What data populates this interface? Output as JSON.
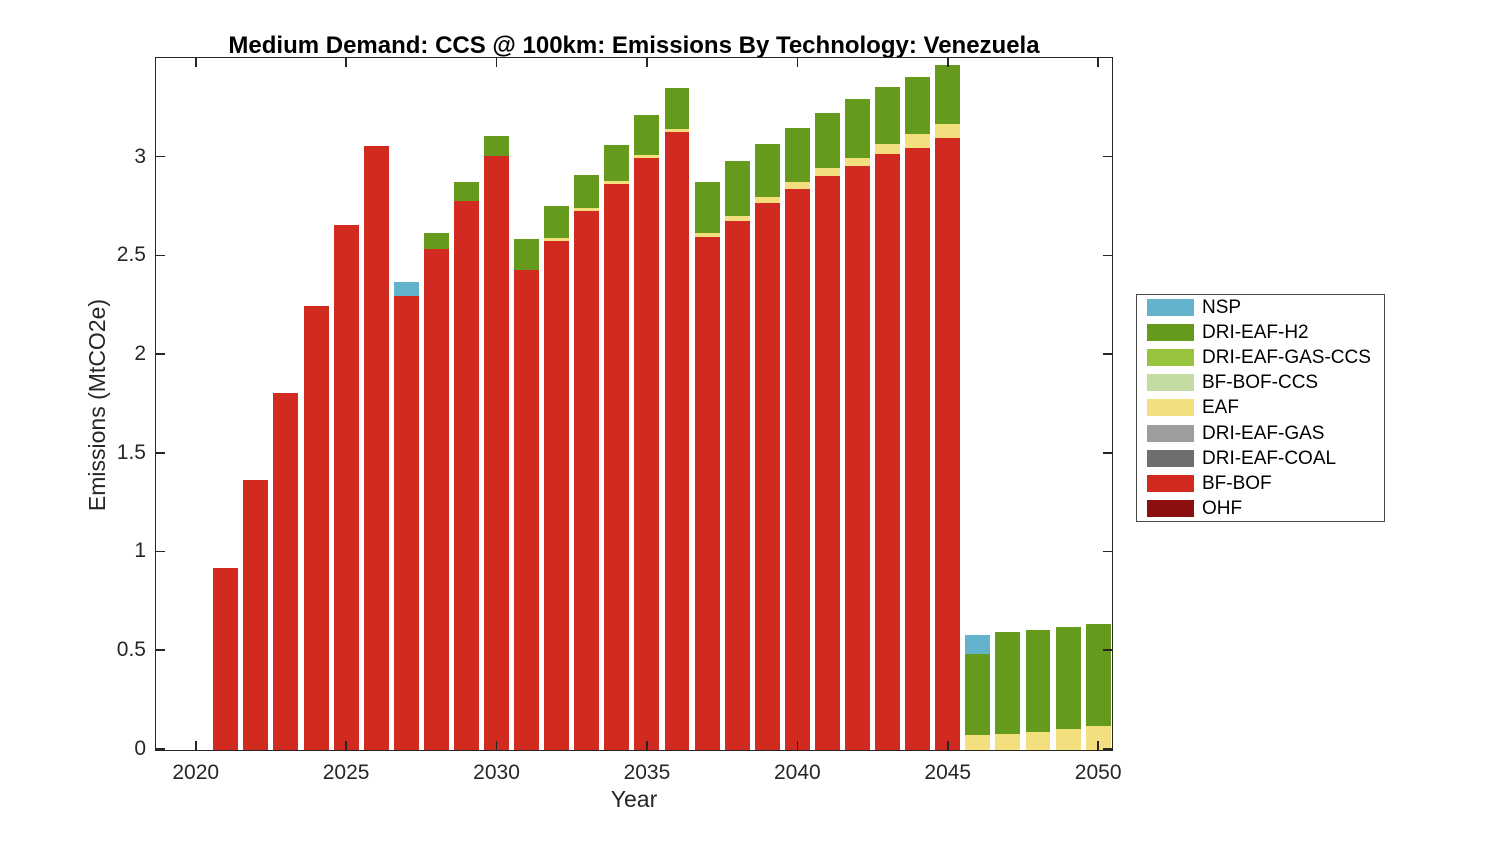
{
  "chart_data": {
    "type": "bar",
    "stacked": true,
    "title": "Medium Demand: CCS @ 100km: Emissions By Technology: Venezuela",
    "xlabel": "Year",
    "ylabel": "Emissions (MtCO2e)",
    "xlim": [
      2018.68,
      2050.42
    ],
    "ylim": [
      0,
      3.5
    ],
    "x_ticks": [
      2020,
      2025,
      2030,
      2035,
      2040,
      2045,
      2050
    ],
    "y_ticks": [
      0,
      0.5,
      1,
      1.5,
      2,
      2.5,
      3
    ],
    "y_tick_labels": [
      "0",
      "0.5",
      "1",
      "1.5",
      "2",
      "2.5",
      "3"
    ],
    "grid": false,
    "legend_position": "outside-right",
    "bar_width_years": 0.83,
    "axis_color": "#262626",
    "years": [
      2021,
      2022,
      2023,
      2024,
      2025,
      2026,
      2027,
      2028,
      2029,
      2030,
      2031,
      2032,
      2033,
      2034,
      2035,
      2036,
      2037,
      2038,
      2039,
      2040,
      2041,
      2042,
      2043,
      2044,
      2045,
      2046,
      2047,
      2048,
      2049,
      2050
    ],
    "series": [
      {
        "name": "OHF",
        "color": "#8B0F0F",
        "values": [
          0,
          0,
          0,
          0,
          0,
          0,
          0,
          0,
          0,
          0,
          0,
          0,
          0,
          0,
          0,
          0,
          0,
          0,
          0,
          0,
          0,
          0,
          0,
          0,
          0,
          0,
          0,
          0,
          0,
          0
        ]
      },
      {
        "name": "BF-BOF",
        "color": "#D02A21",
        "values": [
          0.92,
          1.37,
          1.81,
          2.25,
          2.66,
          3.06,
          2.3,
          2.54,
          2.78,
          3.01,
          2.43,
          2.58,
          2.73,
          2.87,
          3.0,
          3.13,
          2.6,
          2.68,
          2.77,
          2.84,
          2.91,
          2.96,
          3.02,
          3.05,
          3.1,
          0,
          0,
          0,
          0,
          0
        ]
      },
      {
        "name": "DRI-EAF-COAL",
        "color": "#6E6E6E",
        "values": [
          0,
          0,
          0,
          0,
          0,
          0,
          0,
          0,
          0,
          0,
          0,
          0,
          0,
          0,
          0,
          0,
          0,
          0,
          0,
          0,
          0,
          0,
          0,
          0,
          0,
          0,
          0,
          0,
          0,
          0
        ]
      },
      {
        "name": "DRI-EAF-GAS",
        "color": "#9E9E9E",
        "values": [
          0,
          0,
          0,
          0,
          0,
          0,
          0,
          0,
          0,
          0,
          0,
          0,
          0,
          0,
          0,
          0,
          0,
          0,
          0,
          0,
          0,
          0,
          0,
          0,
          0,
          0,
          0,
          0,
          0,
          0
        ]
      },
      {
        "name": "EAF",
        "color": "#F3DF7E",
        "values": [
          0,
          0,
          0,
          0,
          0,
          0,
          0,
          0,
          0,
          0,
          0,
          0.015,
          0.015,
          0.015,
          0.015,
          0.015,
          0.02,
          0.025,
          0.03,
          0.04,
          0.04,
          0.04,
          0.05,
          0.07,
          0.07,
          0.075,
          0.08,
          0.09,
          0.105,
          0.12
        ]
      },
      {
        "name": "BF-BOF-CCS",
        "color": "#C3DCA2",
        "values": [
          0,
          0,
          0,
          0,
          0,
          0,
          0,
          0,
          0,
          0,
          0,
          0,
          0,
          0,
          0,
          0,
          0,
          0,
          0,
          0,
          0,
          0,
          0,
          0,
          0,
          0,
          0,
          0,
          0,
          0
        ]
      },
      {
        "name": "DRI-EAF-GAS-CCS",
        "color": "#98C33D",
        "values": [
          0,
          0,
          0,
          0,
          0,
          0,
          0,
          0,
          0,
          0,
          0,
          0,
          0,
          0,
          0,
          0,
          0,
          0,
          0,
          0,
          0,
          0,
          0,
          0,
          0,
          0,
          0,
          0,
          0,
          0
        ]
      },
      {
        "name": "DRI-EAF-H2",
        "color": "#659A1D",
        "values": [
          0,
          0,
          0,
          0,
          0,
          0,
          0,
          0.08,
          0.1,
          0.1,
          0.16,
          0.16,
          0.17,
          0.18,
          0.2,
          0.21,
          0.26,
          0.28,
          0.27,
          0.27,
          0.28,
          0.3,
          0.29,
          0.29,
          0.3,
          0.41,
          0.52,
          0.52,
          0.52,
          0.52
        ]
      },
      {
        "name": "NSP",
        "color": "#64B3CD",
        "values": [
          0,
          0,
          0,
          0,
          0,
          0,
          0.07,
          0,
          0,
          0,
          0,
          0,
          0,
          0,
          0,
          0,
          0,
          0,
          0,
          0,
          0,
          0,
          0,
          0,
          0,
          0.1,
          0,
          0,
          0,
          0
        ]
      }
    ],
    "legend_order": [
      "NSP",
      "DRI-EAF-H2",
      "DRI-EAF-GAS-CCS",
      "BF-BOF-CCS",
      "EAF",
      "DRI-EAF-GAS",
      "DRI-EAF-COAL",
      "BF-BOF",
      "OHF"
    ]
  }
}
